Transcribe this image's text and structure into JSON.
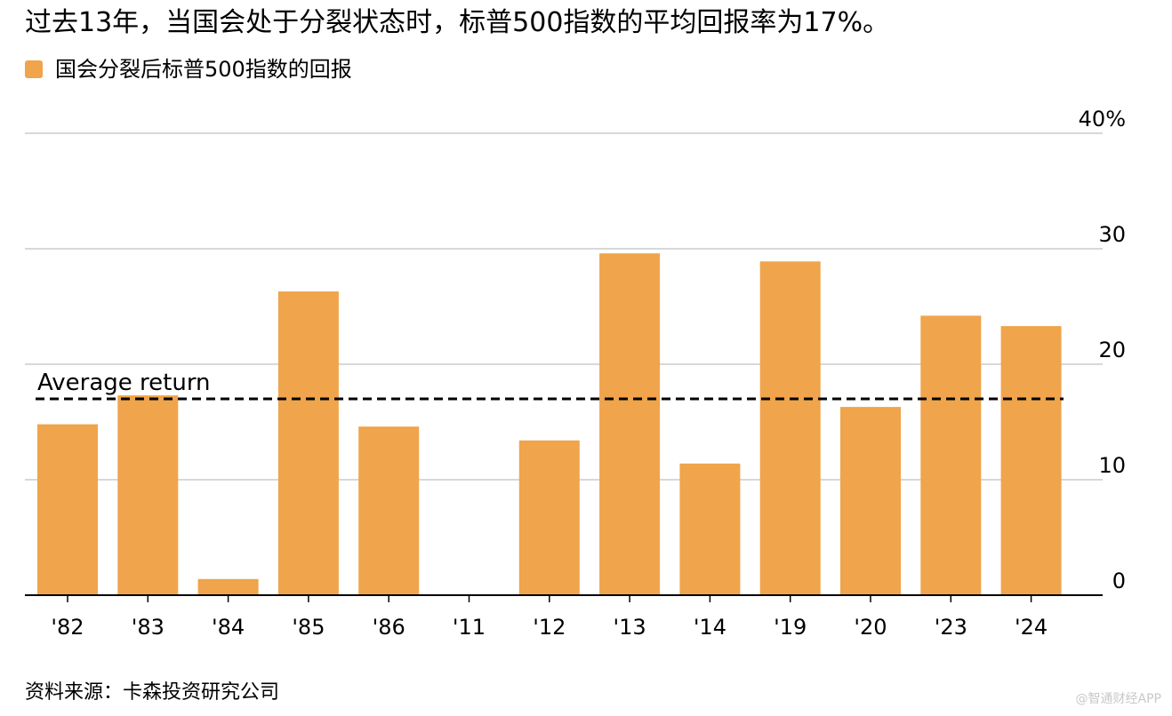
{
  "title": "过去13年，当国会处于分裂状态时，标普500指数的平均回报率为17%。",
  "source": "资料来源：卡森投资研究公司",
  "watermark": "@智通财经APP",
  "colors": {
    "bar": "#F0A44B",
    "grid": "#cccccc",
    "axis": "#000000",
    "average_line": "#000000"
  },
  "chart_data": {
    "type": "bar",
    "categories": [
      "'82",
      "'83",
      "'84",
      "'85",
      "'86",
      "'11",
      "'12",
      "'13",
      "'14",
      "'19",
      "'20",
      "'23",
      "'24"
    ],
    "series": [
      {
        "name": "国会分裂后标普500指数的回报",
        "values": [
          14.8,
          17.3,
          1.4,
          26.3,
          14.6,
          0,
          13.4,
          29.6,
          11.4,
          28.9,
          16.3,
          24.2,
          23.3
        ]
      }
    ],
    "ylim": [
      0,
      40
    ],
    "yticks": [
      0,
      10,
      20,
      30,
      40
    ],
    "ytick_labels": [
      "0",
      "10",
      "20",
      "30",
      "40%"
    ],
    "y_axis_position": "right",
    "grid": true,
    "legend_position": "top-left",
    "annotations": [
      {
        "text": "Average return",
        "y": 17,
        "style": "dashed"
      }
    ]
  }
}
